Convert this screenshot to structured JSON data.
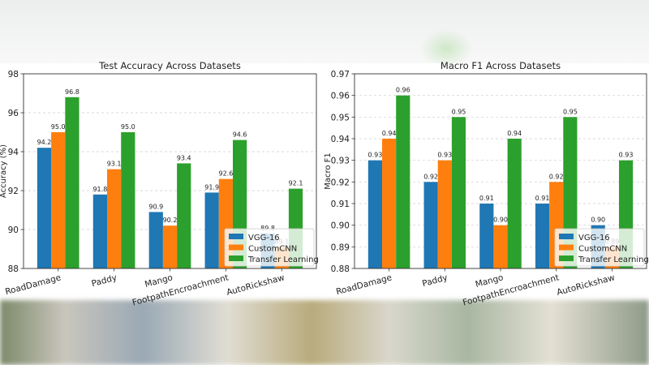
{
  "chart_data": [
    {
      "type": "bar",
      "title": "Test Accuracy Across Datasets",
      "xlabel": "",
      "ylabel": "Accuracy (%)",
      "categories": [
        "RoadDamage",
        "Paddy",
        "Mango",
        "FootpathEncroachment",
        "AutoRickshaw"
      ],
      "series": [
        {
          "name": "VGG-16",
          "color": "#1f77b4",
          "values": [
            94.2,
            91.8,
            90.9,
            91.9,
            89.8
          ],
          "labels": [
            "94.2",
            "91.8",
            "90.9",
            "91.9",
            "89.8"
          ]
        },
        {
          "name": "CustomCNN",
          "color": "#ff7f0e",
          "values": [
            95.0,
            93.1,
            90.2,
            92.6,
            89.1
          ],
          "labels": [
            "95.0",
            "93.1",
            "90.2",
            "92.6",
            "89.1"
          ]
        },
        {
          "name": "Transfer Learning",
          "color": "#2ca02c",
          "values": [
            96.8,
            95.0,
            93.4,
            94.6,
            92.1
          ],
          "labels": [
            "96.8",
            "95.0",
            "93.4",
            "94.6",
            "92.1"
          ]
        }
      ],
      "ylim": [
        88,
        98
      ],
      "yticks": [
        "88",
        "90",
        "92",
        "94",
        "96",
        "98"
      ],
      "grid": "y-dashed",
      "legend": "lower-right"
    },
    {
      "type": "bar",
      "title": "Macro F1 Across Datasets",
      "xlabel": "",
      "ylabel": "Macro F1",
      "categories": [
        "RoadDamage",
        "Paddy",
        "Mango",
        "FootpathEncroachment",
        "AutoRickshaw"
      ],
      "series": [
        {
          "name": "VGG-16",
          "color": "#1f77b4",
          "values": [
            0.93,
            0.92,
            0.91,
            0.91,
            0.9
          ],
          "labels": [
            "0.93",
            "0.92",
            "0.91",
            "0.91",
            "0.90"
          ]
        },
        {
          "name": "CustomCNN",
          "color": "#ff7f0e",
          "values": [
            0.94,
            0.93,
            0.9,
            0.92,
            0.89
          ],
          "labels": [
            "0.94",
            "0.93",
            "0.90",
            "0.92",
            "0.89"
          ]
        },
        {
          "name": "Transfer Learning",
          "color": "#2ca02c",
          "values": [
            0.96,
            0.95,
            0.94,
            0.95,
            0.93
          ],
          "labels": [
            "0.96",
            "0.95",
            "0.94",
            "0.95",
            "0.93"
          ]
        }
      ],
      "ylim": [
        0.88,
        0.97
      ],
      "yticks": [
        "0.88",
        "0.89",
        "0.90",
        "0.91",
        "0.92",
        "0.93",
        "0.94",
        "0.95",
        "0.96",
        "0.97"
      ],
      "grid": "y-dashed",
      "legend": "lower-right"
    }
  ]
}
